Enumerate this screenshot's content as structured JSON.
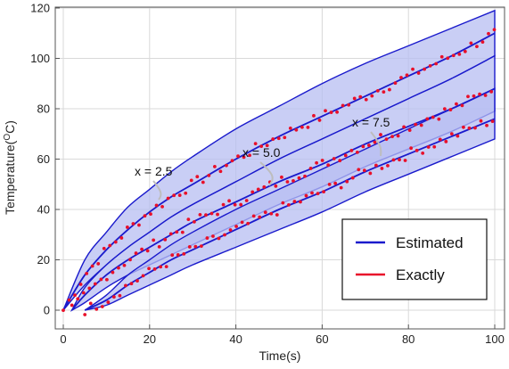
{
  "chart_data": {
    "type": "line",
    "xlabel": "Time(s)",
    "ylabel_main": "Temperature(",
    "ylabel_sup": "O",
    "ylabel_tail": "C)",
    "xlim": [
      0,
      100
    ],
    "ylim": [
      -4,
      120
    ],
    "x_ticks": [
      0,
      20,
      40,
      60,
      80,
      100
    ],
    "y_ticks": [
      0,
      20,
      40,
      60,
      80,
      100,
      120
    ],
    "grid": true,
    "legend": {
      "placement": "bottom-right",
      "entries": [
        {
          "label": "Estimated",
          "color": "#1a1acc"
        },
        {
          "label": "Exactly",
          "color": "#e8102a"
        }
      ]
    },
    "colors": {
      "band_fill": "#b7bdf2",
      "band_edge": "#1a1acc",
      "estimated": "#1a1acc",
      "exact": "#e8102a",
      "grid": "#d9d9d9"
    },
    "series": [
      {
        "annotation": "x = 2.5",
        "onset": 0,
        "x": [
          0,
          5,
          10,
          15,
          20,
          25,
          30,
          40,
          50,
          60,
          70,
          80,
          90,
          100
        ],
        "estimated": [
          0,
          14,
          24,
          32,
          39,
          45,
          50,
          60,
          69,
          77,
          85,
          93,
          101,
          110
        ],
        "upper": [
          0,
          20,
          31,
          41,
          48,
          55,
          61,
          72,
          81,
          90,
          98,
          105,
          112,
          119
        ],
        "lower": [
          0,
          10,
          18,
          25,
          31,
          37,
          42,
          51,
          60,
          68,
          76,
          84,
          92,
          101
        ]
      },
      {
        "annotation": "x = 5.0",
        "onset": 2,
        "x": [
          2,
          5,
          10,
          15,
          20,
          25,
          30,
          40,
          50,
          60,
          70,
          80,
          90,
          100
        ],
        "estimated": [
          0,
          6,
          14,
          20,
          25,
          30,
          35,
          43,
          51,
          58,
          66,
          73,
          80,
          88
        ],
        "upper": [
          0,
          9,
          18,
          25,
          31,
          37,
          42,
          51,
          60,
          68,
          76,
          84,
          92,
          101
        ],
        "lower": [
          0,
          3,
          9,
          14,
          18,
          22,
          26,
          34,
          42,
          49,
          57,
          64,
          71,
          79
        ]
      },
      {
        "annotation": "x = 7.5",
        "onset": 5,
        "x": [
          5,
          10,
          15,
          20,
          25,
          30,
          40,
          50,
          60,
          70,
          80,
          90,
          100
        ],
        "estimated": [
          0,
          4,
          10,
          15,
          20,
          24,
          32,
          40,
          47,
          55,
          62,
          69,
          76
        ],
        "upper": [
          0,
          6,
          14,
          20,
          26,
          31,
          40,
          48,
          56,
          64,
          72,
          80,
          88
        ],
        "lower": [
          0,
          2,
          6,
          10,
          14,
          18,
          25,
          32,
          39,
          47,
          54,
          61,
          68
        ]
      }
    ]
  }
}
